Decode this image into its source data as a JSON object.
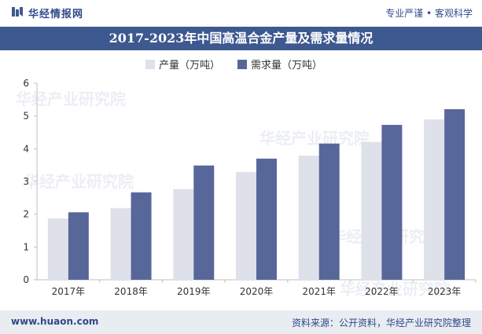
{
  "header": {
    "brand": "华经情报网",
    "slogan": "专业严谨 • 客观科学"
  },
  "footer": {
    "url": "www.huaon.com",
    "source": "资料来源：公开资料，华经产业研究院整理"
  },
  "watermark": "华经产业研究院",
  "colors": {
    "title_bg": "#3e5890",
    "demand": "#58679a",
    "production": "#dfe1ea"
  },
  "chart_data": {
    "type": "bar",
    "title": "2017-2023年中国高温合金产量及需求量情况",
    "categories": [
      "2017年",
      "2018年",
      "2019年",
      "2020年",
      "2021年",
      "2022年",
      "2023年"
    ],
    "series": [
      {
        "name": "产量（万吨）",
        "values": [
          1.87,
          2.19,
          2.77,
          3.29,
          3.79,
          4.21,
          4.9
        ]
      },
      {
        "name": "需求量（万吨）",
        "values": [
          2.06,
          2.67,
          3.49,
          3.7,
          4.16,
          4.73,
          5.21
        ]
      }
    ],
    "ylim": [
      0,
      6
    ],
    "yticks": [
      0,
      1,
      2,
      3,
      4,
      5,
      6
    ],
    "legend": "top-left",
    "grid": false
  }
}
